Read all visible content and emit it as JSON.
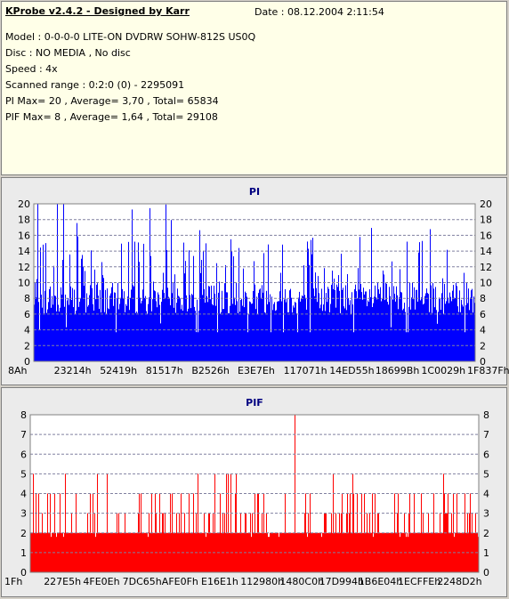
{
  "info": {
    "title": "KProbe v2.4.2 - Designed by Karr",
    "date": "Date : 08.12.2004 2:11:54",
    "lines": [
      "Model : 0-0-0-0 LITE-ON DVDRW SOHW-812S  US0Q",
      "Disc : NO MEDIA , No disc",
      "Speed : 4x",
      "Scanned range : 0:2:0 (0) - 2295091",
      "PI Max= 20 , Average= 3,70 , Total= 65834",
      "PIF Max= 8 , Average= 1,64 , Total= 29108"
    ]
  },
  "chart_data": [
    {
      "type": "bar",
      "title": "PI",
      "color": "#0000ff",
      "ylim": [
        0,
        20
      ],
      "yticks": [
        0,
        2,
        4,
        6,
        8,
        10,
        12,
        14,
        16,
        18,
        20
      ],
      "xticks": [
        "8Ah",
        "23214h",
        "52419h",
        "81517h",
        "B2526h",
        "E3E7Eh",
        "117071h",
        "14ED55h",
        "18699Bh",
        "1C0029h",
        "1F837Fh"
      ],
      "grid": "horizontal dashed",
      "max": 20,
      "average": 3.7
    },
    {
      "type": "bar",
      "title": "PIF",
      "color": "#ff0000",
      "ylim": [
        0,
        8
      ],
      "yticks": [
        0,
        1,
        2,
        3,
        4,
        5,
        6,
        7,
        8
      ],
      "xticks": [
        "1Fh",
        "227E5h",
        "4FE0Eh",
        "7DC65h",
        "AFE0Fh",
        "E16E1h",
        "112980h",
        "1480C0h",
        "17D994h",
        "1B6E04h",
        "1ECFFEh",
        "2248D2h"
      ],
      "grid": "horizontal dashed",
      "max": 8,
      "average": 1.64
    }
  ]
}
